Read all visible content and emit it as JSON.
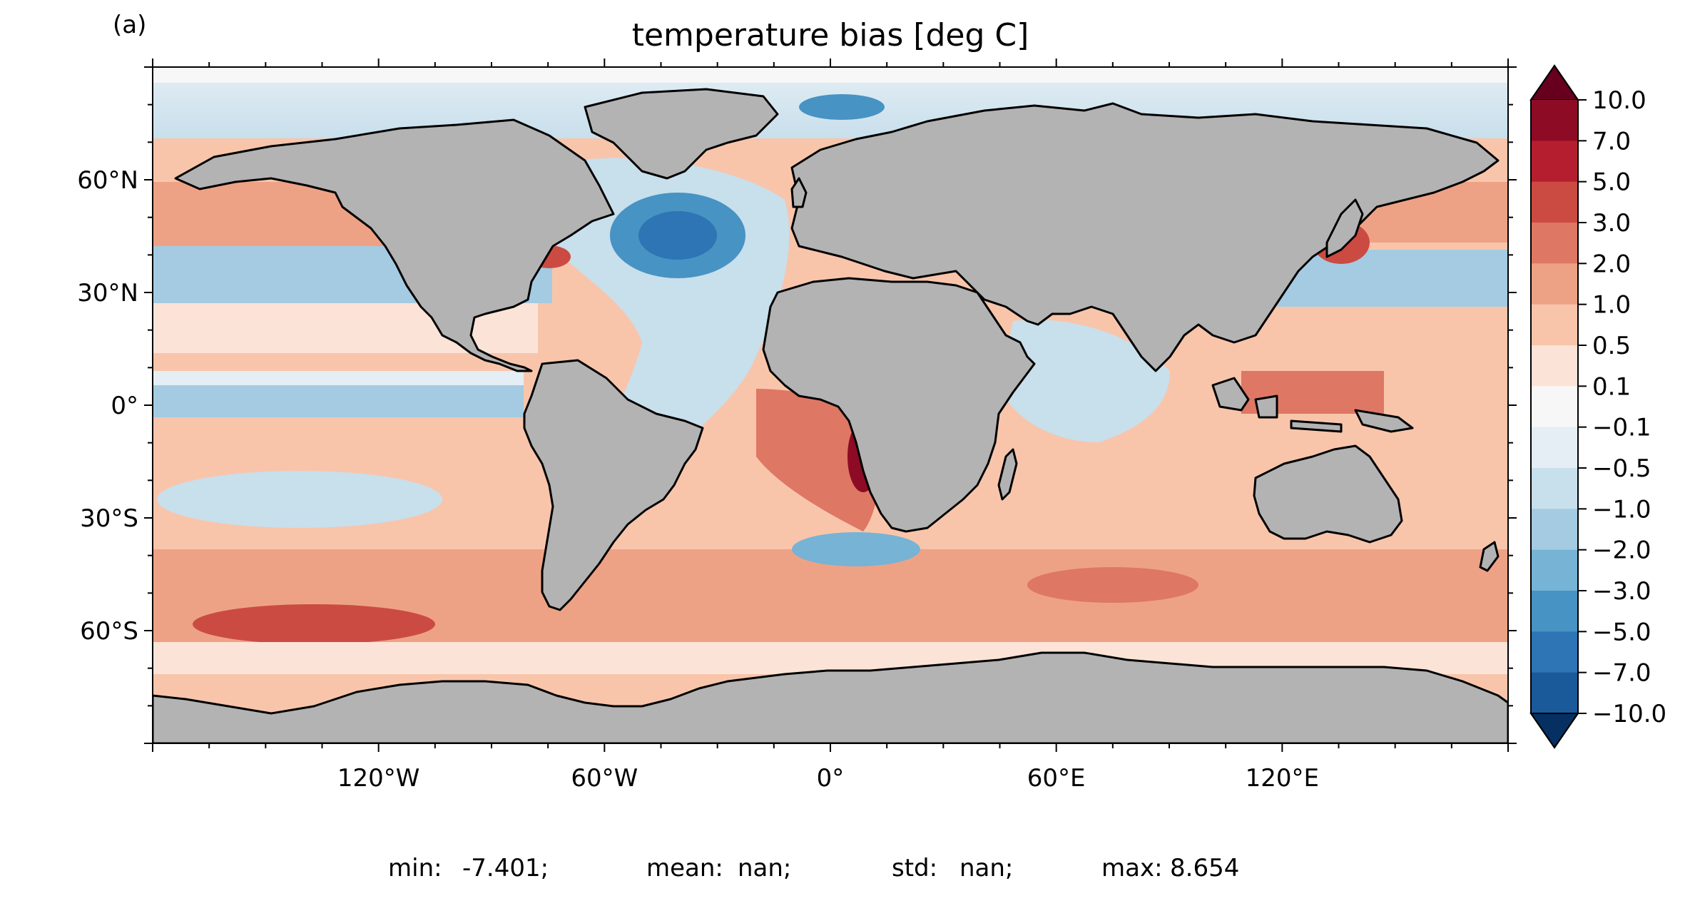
{
  "panel_label": "(a)",
  "title": "temperature bias [deg C]",
  "map": {
    "projection": "plate-carree",
    "lon_range": [
      -180,
      180
    ],
    "lat_range": [
      -90,
      90
    ],
    "lon_ticks": [
      {
        "value": -120,
        "label": "120°W"
      },
      {
        "value": -60,
        "label": "60°W"
      },
      {
        "value": 0,
        "label": "0°"
      },
      {
        "value": 60,
        "label": "60°E"
      },
      {
        "value": 120,
        "label": "120°E"
      }
    ],
    "lat_ticks": [
      {
        "value": 60,
        "label": "60°N"
      },
      {
        "value": 30,
        "label": "30°N"
      },
      {
        "value": 0,
        "label": "0°"
      },
      {
        "value": -30,
        "label": "30°S"
      },
      {
        "value": -60,
        "label": "60°S"
      }
    ],
    "land_color": "#b3b3b3",
    "coastline_color": "#000000"
  },
  "colorbar": {
    "levels": [
      "10.0",
      "7.0",
      "5.0",
      "3.0",
      "2.0",
      "1.0",
      "0.5",
      "0.1",
      "−0.1",
      "−0.5",
      "−1.0",
      "−2.0",
      "−3.0",
      "−5.0",
      "−7.0",
      "−10.0"
    ],
    "colors": [
      "#8e0b25",
      "#b51e2f",
      "#cb4b42",
      "#de7764",
      "#eea285",
      "#f8c5ab",
      "#fbe3d7",
      "#f7f7f7",
      "#e4eef4",
      "#c8dfec",
      "#a4cbe1",
      "#76b3d5",
      "#4793c3",
      "#2d75b4",
      "#1a5a9a"
    ],
    "over_color": "#67001f",
    "under_color": "#053061"
  },
  "stats": [
    {
      "label": "min:",
      "value": "-7.401;"
    },
    {
      "label": "mean:",
      "value": "nan;"
    },
    {
      "label": "std:",
      "value": "nan;"
    },
    {
      "label": "max:",
      "value": "8.654"
    }
  ]
}
